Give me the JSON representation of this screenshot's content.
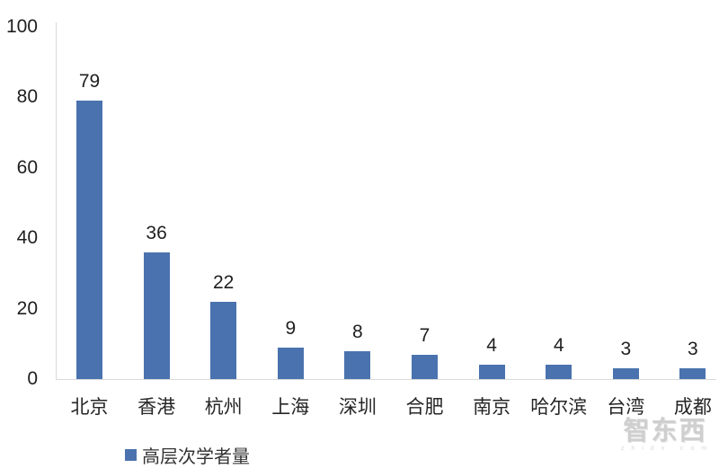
{
  "chart_data": {
    "type": "bar",
    "title": "",
    "categories": [
      "北京",
      "香港",
      "杭州",
      "上海",
      "深圳",
      "合肥",
      "南京",
      "哈尔滨",
      "台湾",
      "成都"
    ],
    "values": [
      79,
      36,
      22,
      9,
      8,
      7,
      4,
      4,
      3,
      3
    ],
    "series_name": "高层次学者量",
    "xlabel": "",
    "ylabel": "",
    "ylim": [
      0,
      100
    ],
    "yticks": [
      0,
      20,
      40,
      60,
      80,
      100
    ],
    "grid": false,
    "data_labels": true,
    "legend_position": "bottom-left",
    "bar_color": "#4a72ae"
  },
  "legend": {
    "label": "高层次学者量"
  },
  "watermark": {
    "text": "智东西",
    "subtext": "z h i d x . c o m"
  },
  "colors": {
    "bar": "#4a72ae",
    "axis_line": "#d9d9d9",
    "text": "#1f1f1f",
    "watermark": "#cfcfcf"
  }
}
